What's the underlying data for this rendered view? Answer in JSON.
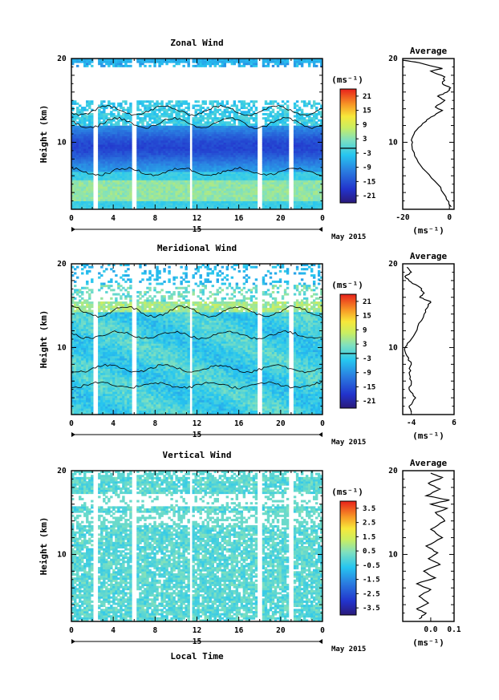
{
  "chart_data": [
    {
      "type": "heatmap",
      "title": "Zonal Wind",
      "xlabel": "",
      "ylabel": "Height (km)",
      "xlim": [
        0,
        24
      ],
      "ylim": [
        2,
        20
      ],
      "x_ticks": [
        "0",
        "4",
        "8",
        "12",
        "16",
        "20",
        "0"
      ],
      "y_ticks": [
        "10",
        "20"
      ],
      "date_label": "15",
      "date_extra": "May 2015",
      "units": "(ms⁻¹)",
      "colorbar_ticks": [
        "21",
        "15",
        "9",
        "3",
        "-3",
        "-9",
        "-15",
        "-21"
      ],
      "gaps_hours": [
        2.0,
        5.8,
        11.2,
        17.8,
        20.8
      ],
      "profile": {
        "title": "Average",
        "xlim": [
          -20,
          2
        ],
        "x_ticks": [
          "-20",
          "0"
        ],
        "y_ticks": [
          "10",
          "20"
        ],
        "xlabel": "(ms⁻¹)",
        "points": [
          [
            0.8,
            2.3
          ],
          [
            -1.5,
            3.5
          ],
          [
            -5,
            5
          ],
          [
            -10,
            6.5
          ],
          [
            -14,
            8
          ],
          [
            -16,
            9.5
          ],
          [
            -16,
            10.5
          ],
          [
            -14,
            11.5
          ],
          [
            -10,
            12.5
          ],
          [
            -8,
            13
          ],
          [
            -3,
            13.8
          ],
          [
            -6,
            14.2
          ],
          [
            -2,
            15
          ],
          [
            -5,
            15.5
          ],
          [
            -1,
            16
          ],
          [
            0.5,
            16.5
          ],
          [
            -3,
            17
          ],
          [
            -2,
            17.8
          ],
          [
            -8,
            18.5
          ],
          [
            -3,
            18.8
          ],
          [
            -13,
            19.5
          ],
          [
            -20,
            19.8
          ]
        ]
      }
    },
    {
      "type": "heatmap",
      "title": "Meridional Wind",
      "xlabel": "",
      "ylabel": "Height (km)",
      "xlim": [
        0,
        24
      ],
      "ylim": [
        2,
        20
      ],
      "x_ticks": [
        "0",
        "4",
        "8",
        "12",
        "16",
        "20",
        "0"
      ],
      "y_ticks": [
        "10",
        "20"
      ],
      "date_label": "15",
      "date_extra": "May 2015",
      "units": "(ms⁻¹)",
      "colorbar_ticks": [
        "21",
        "15",
        "9",
        "3",
        "-3",
        "-9",
        "-15",
        "-21"
      ],
      "gaps_hours": [
        2.0,
        5.8,
        11.2,
        17.8,
        20.8
      ],
      "profile": {
        "title": "Average",
        "xlim": [
          -6,
          6
        ],
        "x_ticks": [
          "-4",
          "6"
        ],
        "y_ticks": [
          "10",
          "20"
        ],
        "xlabel": "(ms⁻¹)",
        "points": [
          [
            -4,
            2.3
          ],
          [
            -4.5,
            3
          ],
          [
            -3,
            4
          ],
          [
            -4.5,
            5
          ],
          [
            -4,
            6
          ],
          [
            -4.5,
            7
          ],
          [
            -4,
            8
          ],
          [
            -5,
            9
          ],
          [
            -5.5,
            10
          ],
          [
            -4,
            11
          ],
          [
            -2.5,
            12.5
          ],
          [
            -1,
            14
          ],
          [
            0,
            15
          ],
          [
            0.5,
            15.5
          ],
          [
            -2,
            16
          ],
          [
            -1,
            16.5
          ],
          [
            -2,
            17.2
          ],
          [
            -4,
            17.8
          ],
          [
            -5.5,
            18.5
          ],
          [
            -4,
            19
          ],
          [
            -5,
            19.6
          ]
        ]
      }
    },
    {
      "type": "heatmap",
      "title": "Vertical Wind",
      "xlabel": "Local Time",
      "ylabel": "Height (km)",
      "xlim": [
        0,
        24
      ],
      "ylim": [
        2,
        20
      ],
      "x_ticks": [
        "0",
        "4",
        "8",
        "12",
        "16",
        "20",
        "0"
      ],
      "y_ticks": [
        "10",
        "20"
      ],
      "date_label": "15",
      "date_extra": "May 2015",
      "units": "(ms⁻¹)",
      "colorbar_ticks": [
        "3.5",
        "2.5",
        "1.5",
        "0.5",
        "-0.5",
        "-1.5",
        "-2.5",
        "-3.5"
      ],
      "gaps_hours": [
        2.0,
        5.8,
        11.2,
        17.8,
        20.8
      ],
      "profile": {
        "title": "Average",
        "xlim": [
          -0.12,
          0.1
        ],
        "x_ticks": [
          "0.0",
          "0.1"
        ],
        "y_ticks": [
          "10",
          "20"
        ],
        "xlabel": "(ms⁻¹)",
        "points": [
          [
            -0.05,
            2.3
          ],
          [
            -0.02,
            3
          ],
          [
            -0.06,
            3.5
          ],
          [
            -0.01,
            4.2
          ],
          [
            -0.05,
            5
          ],
          [
            0.0,
            5.8
          ],
          [
            -0.06,
            6.5
          ],
          [
            0.02,
            7.2
          ],
          [
            -0.03,
            8
          ],
          [
            0.04,
            8.8
          ],
          [
            -0.01,
            9.5
          ],
          [
            0.03,
            10.2
          ],
          [
            -0.02,
            11
          ],
          [
            0.05,
            12
          ],
          [
            0.0,
            13
          ],
          [
            0.06,
            14
          ],
          [
            0.02,
            15
          ],
          [
            0.07,
            15.5
          ],
          [
            0.0,
            16
          ],
          [
            0.08,
            16.5
          ],
          [
            -0.02,
            17
          ],
          [
            0.04,
            17.8
          ],
          [
            -0.01,
            18.5
          ],
          [
            0.05,
            19.2
          ],
          [
            0.0,
            19.7
          ]
        ]
      }
    }
  ]
}
